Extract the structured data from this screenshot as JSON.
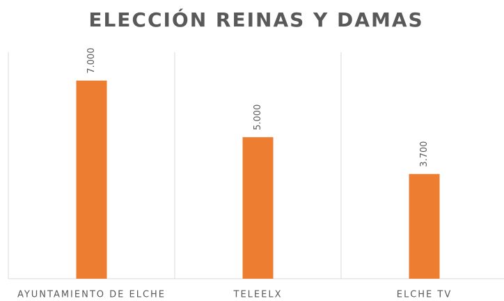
{
  "chart_data": {
    "type": "bar",
    "title": "ELECCIÓN REINAS Y DAMAS",
    "categories": [
      "AYUNTAMIENTO DE ELCHE",
      "TELEELX",
      "ELCHE TV"
    ],
    "values": [
      7000,
      5000,
      3700
    ],
    "value_labels": [
      "7.000",
      "5.000",
      "3.700"
    ],
    "color": "#ed7d31",
    "ylim": [
      0,
      8000
    ]
  }
}
